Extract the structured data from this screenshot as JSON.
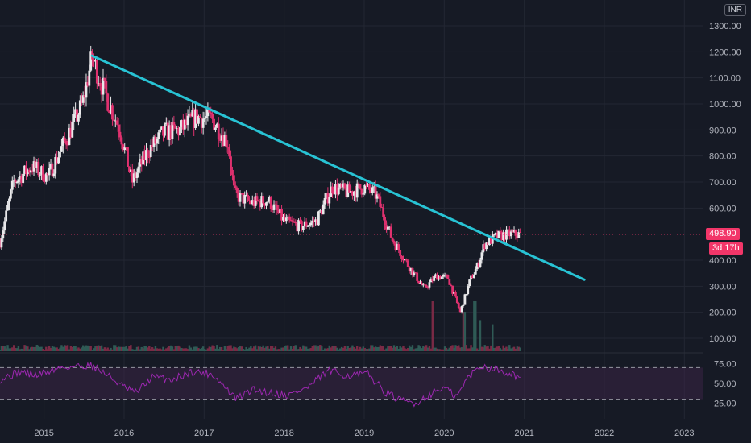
{
  "currency": "INR",
  "last_price_label": "498.90",
  "countdown_label": "3d 17h",
  "colors": {
    "background": "#161a25",
    "up": "#e8e8ea",
    "down": "#e0316f",
    "trendline": "#28c3d4",
    "rsi_line": "#9c27b0",
    "rsi_band": "#3a2445",
    "price_line": "#f23669"
  },
  "chart_data": [
    {
      "type": "candlestick",
      "title": "",
      "ylim": [
        0,
        1330
      ],
      "y_ticks": [
        "100.00",
        "200.00",
        "300.00",
        "400.00",
        "500.00",
        "600.00",
        "700.00",
        "800.00",
        "900.00",
        "1000.00",
        "1100.00",
        "1200.00",
        "1300.00"
      ],
      "x_ticks": [
        "2015",
        "2016",
        "2017",
        "2018",
        "2019",
        "2020",
        "2021",
        "2022",
        "2023"
      ],
      "x_range": [
        2014.45,
        2023.45
      ],
      "series_anchors": [
        [
          2014.45,
          470
        ],
        [
          2014.62,
          700
        ],
        [
          2014.85,
          760
        ],
        [
          2015.05,
          720
        ],
        [
          2015.3,
          880
        ],
        [
          2015.48,
          1000
        ],
        [
          2015.6,
          1180
        ],
        [
          2015.75,
          1050
        ],
        [
          2015.95,
          900
        ],
        [
          2016.1,
          700
        ],
        [
          2016.3,
          820
        ],
        [
          2016.5,
          890
        ],
        [
          2016.7,
          900
        ],
        [
          2016.9,
          950
        ],
        [
          2017.1,
          940
        ],
        [
          2017.3,
          850
        ],
        [
          2017.38,
          650
        ],
        [
          2017.6,
          620
        ],
        [
          2017.8,
          630
        ],
        [
          2018.0,
          550
        ],
        [
          2018.2,
          530
        ],
        [
          2018.4,
          550
        ],
        [
          2018.6,
          680
        ],
        [
          2018.8,
          660
        ],
        [
          2019.0,
          680
        ],
        [
          2019.15,
          650
        ],
        [
          2019.35,
          480
        ],
        [
          2019.55,
          380
        ],
        [
          2019.75,
          290
        ],
        [
          2019.9,
          340
        ],
        [
          2020.05,
          330
        ],
        [
          2020.2,
          200
        ],
        [
          2020.32,
          320
        ],
        [
          2020.42,
          380
        ],
        [
          2020.5,
          460
        ],
        [
          2020.65,
          490
        ],
        [
          2020.8,
          500
        ],
        [
          2020.95,
          498.9
        ]
      ],
      "last_value": 498.9,
      "trendline": {
        "from": [
          2015.6,
          1185
        ],
        "to": [
          2021.75,
          325
        ]
      }
    },
    {
      "type": "bar",
      "name": "Volume",
      "spikes": [
        [
          2019.85,
          1.0
        ],
        [
          2020.25,
          0.75
        ],
        [
          2020.38,
          1.0
        ],
        [
          2020.45,
          0.55
        ],
        [
          2020.6,
          0.45
        ]
      ]
    },
    {
      "type": "line",
      "name": "RSI",
      "ylim": [
        15,
        80
      ],
      "y_ticks": [
        "25.00",
        "50.00",
        "75.00"
      ],
      "bands": [
        30,
        70
      ],
      "anchors": [
        [
          2014.45,
          55
        ],
        [
          2014.7,
          65
        ],
        [
          2014.9,
          60
        ],
        [
          2015.2,
          70
        ],
        [
          2015.45,
          72
        ],
        [
          2015.6,
          73
        ],
        [
          2015.8,
          60
        ],
        [
          2016.0,
          45
        ],
        [
          2016.15,
          38
        ],
        [
          2016.35,
          58
        ],
        [
          2016.6,
          55
        ],
        [
          2016.85,
          65
        ],
        [
          2017.1,
          62
        ],
        [
          2017.4,
          30
        ],
        [
          2017.6,
          42
        ],
        [
          2017.85,
          38
        ],
        [
          2018.05,
          35
        ],
        [
          2018.3,
          45
        ],
        [
          2018.55,
          66
        ],
        [
          2018.8,
          60
        ],
        [
          2019.05,
          62
        ],
        [
          2019.25,
          40
        ],
        [
          2019.45,
          28
        ],
        [
          2019.65,
          25
        ],
        [
          2019.85,
          38
        ],
        [
          2020.0,
          45
        ],
        [
          2020.15,
          32
        ],
        [
          2020.3,
          58
        ],
        [
          2020.45,
          72
        ],
        [
          2020.65,
          68
        ],
        [
          2020.85,
          62
        ],
        [
          2020.95,
          58
        ]
      ]
    }
  ]
}
